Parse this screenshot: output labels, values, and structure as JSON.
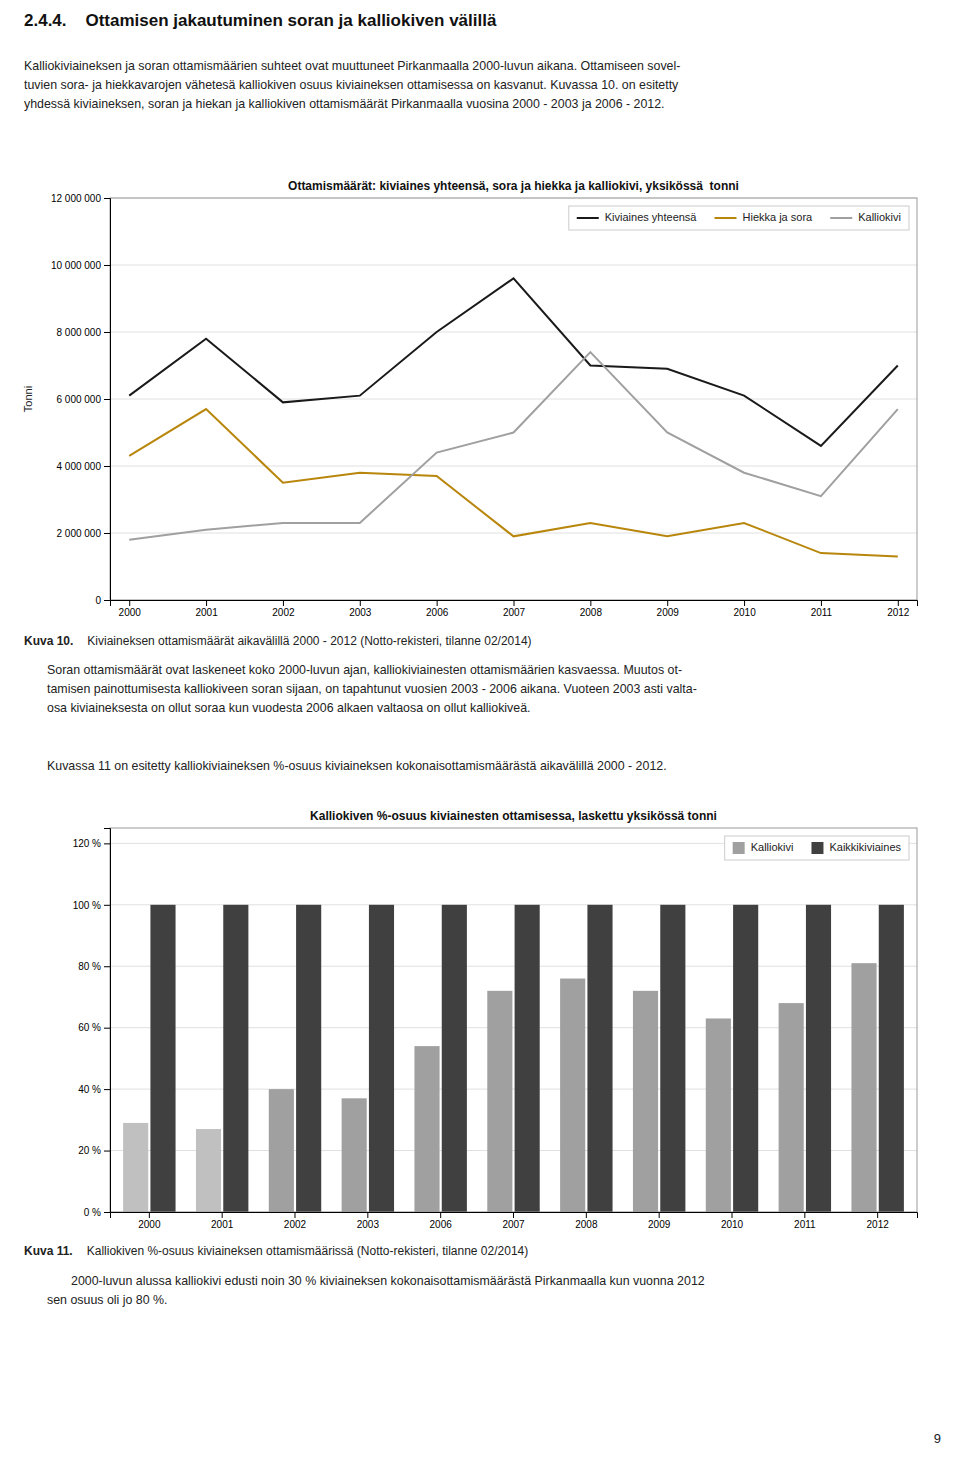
{
  "heading": "2.4.4.    Ottamisen jakautuminen soran ja kalliokiven välillä",
  "intro": "Kalliokiviaineksen ja soran ottamismäärien suhteet ovat muuttuneet Pirkanmaalla 2000-luvun aikana. Ottamiseen sovel-\ntuvien sora- ja hiekkavarojen vähetesä kalliokiven osuus kiviaineksen ottamisessa on kasvanut. Kuvassa 10. on esitetty\nyhdessä kiviaineksen, soran ja hiekan ja kalliokiven ottamismäärät Pirkanmaalla vuosina 2000 - 2003 ja 2006 - 2012.",
  "middle": [
    "Soran ottamismäärät ovat laskeneet koko 2000-luvun ajan, kalliokiviainesten ottamismäärien kasvaessa. Muutos ot-\ntamisen painottumisesta kalliokiveen soran sijaan, on tapahtunut vuosien 2003 - 2006 aikana. Vuoteen 2003 asti valta-\nosa kiviaineksesta on ollut soraa kun vuodesta 2006 alkaen valtaosa on ollut kalliokiveä.",
    "Kuvassa 11 on esitetty kalliokiviaineksen %-osuus kiviaineksen kokonaisottamismäärästä aikavälillä 2000 - 2012."
  ],
  "footer": "2000-luvun alussa kalliokivi edusti noin 30 % kiviaineksen kokonaisottamismäärästä Pirkanmaalla kun vuonna 2012\nsen osuus oli jo 80 %.",
  "page_number": 9,
  "chart_data": [
    {
      "type": "line",
      "title": "Ottamismäärät: kiviaines yhteensä, sora ja hiekka ja kalliokivi, yksikössä  tonni",
      "ylabel": "Tonni",
      "categories": [
        "2000",
        "2001",
        "2002",
        "2003",
        "2006",
        "2007",
        "2008",
        "2009",
        "2010",
        "2011",
        "2012"
      ],
      "series": [
        {
          "name": "Kiviaines yhteensä",
          "color": "#1a1a1a",
          "values": [
            6100000,
            7800000,
            5900000,
            6100000,
            8000000,
            9600000,
            7000000,
            6900000,
            6100000,
            4600000,
            7000000
          ]
        },
        {
          "name": "Hiekka ja sora",
          "color": "#b8860b",
          "values": [
            4300000,
            5700000,
            3500000,
            3800000,
            3700000,
            1900000,
            2300000,
            1900000,
            2300000,
            1400000,
            1300000
          ]
        },
        {
          "name": "Kalliokivi",
          "color": "#a0a0a0",
          "values": [
            1800000,
            2100000,
            2300000,
            2300000,
            4400000,
            5000000,
            7400000,
            5000000,
            3800000,
            3100000,
            5700000
          ]
        }
      ],
      "ylim": [
        0,
        12000000
      ],
      "yticks": [
        0,
        {
          "value": 2000000,
          "label": "2 000 000"
        },
        {
          "value": 4000000,
          "label": "4 000 000"
        },
        {
          "value": 6000000,
          "label": "6 000 000"
        },
        {
          "value": 8000000,
          "label": "8 000 000"
        },
        {
          "value": 10000000,
          "label": "10 000 000"
        },
        {
          "value": 12000000,
          "label": "12 000 000"
        }
      ],
      "grid": true,
      "legend": "upper right",
      "caption": {
        "label": "Kuva 10.",
        "text": "Kiviaineksen ottamismäärät aikavälillä 2000 - 2012 (Notto-rekisteri, tilanne 02/2014)"
      }
    },
    {
      "type": "bar",
      "title": "Kalliokiven %-osuus kiviainesten ottamisessa, laskettu yksikössä tonni",
      "categories": [
        "2000",
        "2001",
        "2002",
        "2003",
        "2006",
        "2007",
        "2008",
        "2009",
        "2010",
        "2011",
        "2012"
      ],
      "series": [
        {
          "name": "Kalliokivi",
          "color": "#a0a0a0",
          "colors": [
            "#c0c0c0",
            "#c0c0c0",
            "#a0a0a0",
            "#a0a0a0",
            "#a0a0a0",
            "#a0a0a0",
            "#a0a0a0",
            "#a0a0a0",
            "#a0a0a0",
            "#a0a0a0",
            "#a0a0a0"
          ],
          "values": [
            29,
            27,
            40,
            37,
            54,
            72,
            76,
            72,
            63,
            68,
            81
          ]
        },
        {
          "name": "Kaikkikiviaines",
          "color": "#404040",
          "values": [
            100,
            100,
            100,
            100,
            100,
            100,
            100,
            100,
            100,
            100,
            100
          ]
        }
      ],
      "ylim": [
        0,
        125
      ],
      "yticks": [
        {
          "value": 0,
          "label": "0 %"
        },
        {
          "value": 20,
          "label": "20 %"
        },
        {
          "value": 40,
          "label": "40 %"
        },
        {
          "value": 60,
          "label": "60 %"
        },
        {
          "value": 80,
          "label": "80 %"
        },
        {
          "value": 100,
          "label": "100 %"
        },
        {
          "value": 120,
          "label": "120 %"
        }
      ],
      "grid": true,
      "legend": "upper right",
      "caption": {
        "label": "Kuva 11.",
        "text": "Kalliokiven %-osuus kiviaineksen ottamismäärissä (Notto-rekisteri, tilanne 02/2014)"
      }
    }
  ]
}
